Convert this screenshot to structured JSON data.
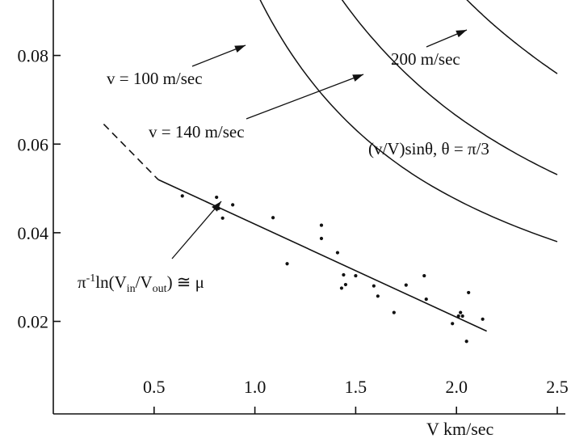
{
  "chart_data": {
    "type": "scatter",
    "xlabel": "V  km/sec",
    "ylabel": "",
    "xlim": [
      0,
      2.5
    ],
    "ylim": [
      0.005,
      0.094
    ],
    "x_ticks": [
      0.5,
      1.0,
      1.5,
      2.0,
      2.5
    ],
    "x_tick_labels": [
      "0.5",
      "1.0",
      "1.5",
      "2.0",
      "2.5"
    ],
    "y_ticks": [
      0.02,
      0.04,
      0.06,
      0.08
    ],
    "y_tick_labels": [
      "0.02",
      "0.04",
      "0.06",
      "0.08"
    ],
    "grid": false,
    "points": [
      {
        "x": 0.64,
        "y": 0.0483
      },
      {
        "x": 0.81,
        "y": 0.048
      },
      {
        "x": 0.82,
        "y": 0.0455
      },
      {
        "x": 0.84,
        "y": 0.0433
      },
      {
        "x": 0.89,
        "y": 0.0463
      },
      {
        "x": 1.09,
        "y": 0.0434
      },
      {
        "x": 1.16,
        "y": 0.033
      },
      {
        "x": 1.33,
        "y": 0.0417
      },
      {
        "x": 1.33,
        "y": 0.0387
      },
      {
        "x": 1.41,
        "y": 0.0355
      },
      {
        "x": 1.43,
        "y": 0.0275
      },
      {
        "x": 1.44,
        "y": 0.0305
      },
      {
        "x": 1.45,
        "y": 0.0283
      },
      {
        "x": 1.5,
        "y": 0.0303
      },
      {
        "x": 1.59,
        "y": 0.028
      },
      {
        "x": 1.61,
        "y": 0.0257
      },
      {
        "x": 1.69,
        "y": 0.022
      },
      {
        "x": 1.75,
        "y": 0.0282
      },
      {
        "x": 1.84,
        "y": 0.0303
      },
      {
        "x": 1.85,
        "y": 0.025
      },
      {
        "x": 1.98,
        "y": 0.0195
      },
      {
        "x": 2.01,
        "y": 0.0212
      },
      {
        "x": 2.02,
        "y": 0.022
      },
      {
        "x": 2.03,
        "y": 0.0212
      },
      {
        "x": 2.05,
        "y": 0.0155
      },
      {
        "x": 2.06,
        "y": 0.0265
      },
      {
        "x": 2.13,
        "y": 0.0205
      }
    ],
    "fit_line": {
      "label": "π⁻¹ln(Vin/Vout) ≅ μ",
      "dashed_from": [
        0.25,
        0.0645
      ],
      "solid_from": [
        0.52,
        0.052
      ],
      "solid_to": [
        2.15,
        0.0178
      ]
    },
    "curves": [
      {
        "label": "v = 100 m/sec",
        "points": [
          [
            1.01,
            0.094
          ],
          [
            1.2,
            0.0791
          ],
          [
            1.4,
            0.0678
          ],
          [
            1.6,
            0.0593
          ],
          [
            1.8,
            0.0527
          ],
          [
            2.0,
            0.0475
          ],
          [
            2.2,
            0.0432
          ],
          [
            2.5,
            0.038
          ]
        ]
      },
      {
        "label": "v = 140 m/sec",
        "points": [
          [
            1.41,
            0.094
          ],
          [
            1.6,
            0.083
          ],
          [
            1.8,
            0.0738
          ],
          [
            2.0,
            0.0664
          ],
          [
            2.2,
            0.0604
          ],
          [
            2.5,
            0.0531
          ]
        ]
      },
      {
        "label": "200 m/sec",
        "points": [
          [
            2.02,
            0.094
          ],
          [
            2.2,
            0.0863
          ],
          [
            2.35,
            0.0808
          ],
          [
            2.5,
            0.0759
          ]
        ]
      }
    ],
    "annotations": [
      {
        "text": "v = 100 m/sec"
      },
      {
        "text": "v = 140 m/sec"
      },
      {
        "text": "200 m/sec"
      },
      {
        "text": "(v/V)sinθ,  θ = π/3"
      }
    ]
  }
}
